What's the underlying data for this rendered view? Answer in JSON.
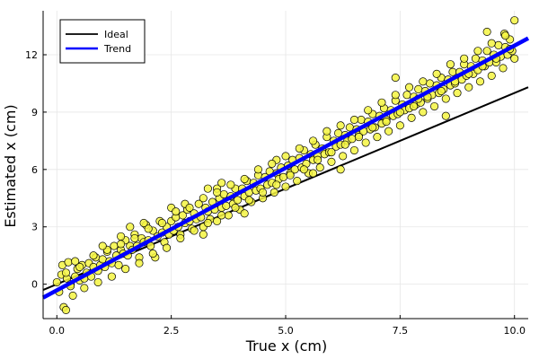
{
  "chart_data": {
    "type": "scatter",
    "title": "",
    "xlabel": "True x (cm)",
    "ylabel": "Estimated x (cm)",
    "xlim": [
      -0.3,
      10.3
    ],
    "ylim": [
      -1.8,
      14.3
    ],
    "xticks": [
      0.0,
      2.5,
      5.0,
      7.5,
      10.0
    ],
    "xtick_labels": [
      "0.0",
      "2.5",
      "5.0",
      "7.5",
      "10.0"
    ],
    "yticks": [
      0,
      3,
      6,
      9,
      12
    ],
    "ytick_labels": [
      "0",
      "3",
      "6",
      "9",
      "12"
    ],
    "grid": true,
    "legend_position": "top-left",
    "legend": [
      {
        "label": "Ideal",
        "color": "#000000"
      },
      {
        "label": "Trend",
        "color": "#0000ff"
      }
    ],
    "series": [
      {
        "name": "Ideal",
        "kind": "line",
        "color": "#000000",
        "slope": 1.0,
        "intercept": 0.0
      },
      {
        "name": "Trend",
        "kind": "line",
        "color": "#0000ff",
        "slope": 1.28,
        "intercept": -0.32
      },
      {
        "kind": "scatter",
        "color": "#f5f542",
        "edge_color": "#000000",
        "points": [
          [
            0.0,
            0.1
          ],
          [
            0.05,
            -0.4
          ],
          [
            0.1,
            0.5
          ],
          [
            0.12,
            1.0
          ],
          [
            0.15,
            -1.2
          ],
          [
            0.2,
            -1.35
          ],
          [
            0.22,
            0.3
          ],
          [
            0.25,
            1.15
          ],
          [
            0.3,
            0.0
          ],
          [
            0.35,
            -0.6
          ],
          [
            0.4,
            0.4
          ],
          [
            0.45,
            0.8
          ],
          [
            0.5,
            0.2
          ],
          [
            0.55,
            1.0
          ],
          [
            0.6,
            0.3
          ],
          [
            0.65,
            0.6
          ],
          [
            0.7,
            1.1
          ],
          [
            0.75,
            0.4
          ],
          [
            0.8,
            0.9
          ],
          [
            0.85,
            1.4
          ],
          [
            0.9,
            0.7
          ],
          [
            0.95,
            1.0
          ],
          [
            1.0,
            1.3
          ],
          [
            1.05,
            0.9
          ],
          [
            1.1,
            1.7
          ],
          [
            1.15,
            1.2
          ],
          [
            1.2,
            1.1
          ],
          [
            1.25,
            2.0
          ],
          [
            1.3,
            1.5
          ],
          [
            1.35,
            1.0
          ],
          [
            1.4,
            1.8
          ],
          [
            1.45,
            1.6
          ],
          [
            1.5,
            2.3
          ],
          [
            1.55,
            1.5
          ],
          [
            1.6,
            2.0
          ],
          [
            1.65,
            1.8
          ],
          [
            1.7,
            2.6
          ],
          [
            1.75,
            2.0
          ],
          [
            1.8,
            1.4
          ],
          [
            1.85,
            2.4
          ],
          [
            1.9,
            2.2
          ],
          [
            1.95,
            3.1
          ],
          [
            2.0,
            2.3
          ],
          [
            2.05,
            2.0
          ],
          [
            2.1,
            2.8
          ],
          [
            2.15,
            1.4
          ],
          [
            2.2,
            2.5
          ],
          [
            2.25,
            3.3
          ],
          [
            2.3,
            2.7
          ],
          [
            2.35,
            2.2
          ],
          [
            2.4,
            3.0
          ],
          [
            2.45,
            2.6
          ],
          [
            2.5,
            3.3
          ],
          [
            2.55,
            2.8
          ],
          [
            2.6,
            3.5
          ],
          [
            2.65,
            3.0
          ],
          [
            2.7,
            2.6
          ],
          [
            2.75,
            3.6
          ],
          [
            2.8,
            3.2
          ],
          [
            2.85,
            3.9
          ],
          [
            2.9,
            3.3
          ],
          [
            2.95,
            2.9
          ],
          [
            3.0,
            3.7
          ],
          [
            3.05,
            3.4
          ],
          [
            3.1,
            4.2
          ],
          [
            3.15,
            3.5
          ],
          [
            3.2,
            3.0
          ],
          [
            3.25,
            4.0
          ],
          [
            3.3,
            3.8
          ],
          [
            3.35,
            3.4
          ],
          [
            3.4,
            4.3
          ],
          [
            3.45,
            3.9
          ],
          [
            3.5,
            3.3
          ],
          [
            3.55,
            4.5
          ],
          [
            3.6,
            4.0
          ],
          [
            3.65,
            4.7
          ],
          [
            3.7,
            4.1
          ],
          [
            3.75,
            3.6
          ],
          [
            3.8,
            4.6
          ],
          [
            3.85,
            4.2
          ],
          [
            3.9,
            5.0
          ],
          [
            3.95,
            4.4
          ],
          [
            4.0,
            3.9
          ],
          [
            4.05,
            5.0
          ],
          [
            4.1,
            4.6
          ],
          [
            4.15,
            5.4
          ],
          [
            4.2,
            4.8
          ],
          [
            4.25,
            4.3
          ],
          [
            4.3,
            5.3
          ],
          [
            4.35,
            4.9
          ],
          [
            4.4,
            5.7
          ],
          [
            4.45,
            5.0
          ],
          [
            4.5,
            4.5
          ],
          [
            4.55,
            5.6
          ],
          [
            4.6,
            5.2
          ],
          [
            4.65,
            5.9
          ],
          [
            4.7,
            5.3
          ],
          [
            4.75,
            4.8
          ],
          [
            4.8,
            5.8
          ],
          [
            4.85,
            5.5
          ],
          [
            4.9,
            6.1
          ],
          [
            4.95,
            5.6
          ],
          [
            5.0,
            5.1
          ],
          [
            5.05,
            6.2
          ],
          [
            5.1,
            5.8
          ],
          [
            5.15,
            6.5
          ],
          [
            5.2,
            6.0
          ],
          [
            5.25,
            5.4
          ],
          [
            5.3,
            6.6
          ],
          [
            5.35,
            6.1
          ],
          [
            5.4,
            7.0
          ],
          [
            5.45,
            6.3
          ],
          [
            5.5,
            5.8
          ],
          [
            5.55,
            6.8
          ],
          [
            5.6,
            6.5
          ],
          [
            5.65,
            7.3
          ],
          [
            5.7,
            6.7
          ],
          [
            5.75,
            6.1
          ],
          [
            5.8,
            7.1
          ],
          [
            5.85,
            6.8
          ],
          [
            5.9,
            7.7
          ],
          [
            5.95,
            6.9
          ],
          [
            6.0,
            6.4
          ],
          [
            6.05,
            7.5
          ],
          [
            6.1,
            7.2
          ],
          [
            6.15,
            7.9
          ],
          [
            6.2,
            7.3
          ],
          [
            6.25,
            6.7
          ],
          [
            6.3,
            7.8
          ],
          [
            6.35,
            7.5
          ],
          [
            6.4,
            8.2
          ],
          [
            6.45,
            7.6
          ],
          [
            6.5,
            7.0
          ],
          [
            6.55,
            8.1
          ],
          [
            6.6,
            7.8
          ],
          [
            6.65,
            8.6
          ],
          [
            6.7,
            8.0
          ],
          [
            6.75,
            7.4
          ],
          [
            6.8,
            8.5
          ],
          [
            6.85,
            8.1
          ],
          [
            6.9,
            8.9
          ],
          [
            6.95,
            8.2
          ],
          [
            7.0,
            7.7
          ],
          [
            7.05,
            8.8
          ],
          [
            7.1,
            8.4
          ],
          [
            7.15,
            9.2
          ],
          [
            7.2,
            8.6
          ],
          [
            7.25,
            8.0
          ],
          [
            7.3,
            9.1
          ],
          [
            7.35,
            8.8
          ],
          [
            7.4,
            9.6
          ],
          [
            7.45,
            8.9
          ],
          [
            7.5,
            8.3
          ],
          [
            7.55,
            9.4
          ],
          [
            7.6,
            9.1
          ],
          [
            7.65,
            9.9
          ],
          [
            7.7,
            9.2
          ],
          [
            7.75,
            8.7
          ],
          [
            7.8,
            9.8
          ],
          [
            7.85,
            9.4
          ],
          [
            7.9,
            10.2
          ],
          [
            7.95,
            9.5
          ],
          [
            8.0,
            9.0
          ],
          [
            8.05,
            10.1
          ],
          [
            8.1,
            9.7
          ],
          [
            8.15,
            10.5
          ],
          [
            8.2,
            9.9
          ],
          [
            8.25,
            9.3
          ],
          [
            8.3,
            10.4
          ],
          [
            8.35,
            10.0
          ],
          [
            8.4,
            10.8
          ],
          [
            8.45,
            10.2
          ],
          [
            8.5,
            9.7
          ],
          [
            8.55,
            10.7
          ],
          [
            8.6,
            10.4
          ],
          [
            8.65,
            11.1
          ],
          [
            8.7,
            10.5
          ],
          [
            8.75,
            10.0
          ],
          [
            8.8,
            11.1
          ],
          [
            8.85,
            10.7
          ],
          [
            8.9,
            11.5
          ],
          [
            8.95,
            10.9
          ],
          [
            9.0,
            10.3
          ],
          [
            9.05,
            11.4
          ],
          [
            9.1,
            11.0
          ],
          [
            9.15,
            11.8
          ],
          [
            9.2,
            11.2
          ],
          [
            9.25,
            10.6
          ],
          [
            9.3,
            11.7
          ],
          [
            9.35,
            11.4
          ],
          [
            9.4,
            12.2
          ],
          [
            9.45,
            11.6
          ],
          [
            9.5,
            10.9
          ],
          [
            9.55,
            12.0
          ],
          [
            9.6,
            11.6
          ],
          [
            9.65,
            12.5
          ],
          [
            9.7,
            11.9
          ],
          [
            9.75,
            11.3
          ],
          [
            9.8,
            12.4
          ],
          [
            9.85,
            12.0
          ],
          [
            9.9,
            12.8
          ],
          [
            9.95,
            12.2
          ],
          [
            10.0,
            11.8
          ],
          [
            9.78,
            13.1
          ],
          [
            10.0,
            13.8
          ],
          [
            9.4,
            13.2
          ],
          [
            7.4,
            10.8
          ],
          [
            8.5,
            8.8
          ],
          [
            7.9,
            9.7
          ],
          [
            2.5,
            4.0
          ],
          [
            3.5,
            5.0
          ],
          [
            2.8,
            4.2
          ],
          [
            3.3,
            5.0
          ],
          [
            4.1,
            3.7
          ],
          [
            3.2,
            2.6
          ],
          [
            1.6,
            3.0
          ],
          [
            1.4,
            2.5
          ],
          [
            5.6,
            5.8
          ],
          [
            6.2,
            6.0
          ],
          [
            4.8,
            6.5
          ],
          [
            0.3,
            -0.1
          ],
          [
            0.6,
            -0.2
          ],
          [
            0.9,
            0.1
          ],
          [
            1.2,
            0.4
          ],
          [
            1.5,
            0.8
          ],
          [
            1.8,
            1.1
          ],
          [
            2.1,
            1.6
          ],
          [
            2.4,
            1.9
          ],
          [
            2.7,
            2.4
          ],
          [
            3.0,
            2.8
          ],
          [
            3.3,
            3.2
          ],
          [
            3.6,
            3.6
          ],
          [
            3.9,
            4.0
          ],
          [
            4.2,
            4.4
          ],
          [
            4.5,
            4.8
          ],
          [
            4.8,
            5.2
          ],
          [
            5.1,
            5.7
          ],
          [
            5.4,
            6.0
          ],
          [
            5.7,
            6.5
          ],
          [
            6.0,
            6.9
          ],
          [
            6.3,
            7.3
          ],
          [
            6.6,
            7.7
          ],
          [
            6.9,
            8.2
          ],
          [
            7.2,
            8.5
          ],
          [
            7.5,
            9.0
          ],
          [
            7.8,
            9.3
          ],
          [
            8.1,
            9.8
          ],
          [
            8.4,
            10.1
          ],
          [
            8.7,
            10.6
          ],
          [
            9.0,
            11.0
          ],
          [
            9.3,
            11.4
          ],
          [
            9.6,
            11.8
          ],
          [
            9.9,
            12.3
          ],
          [
            0.2,
            0.6
          ],
          [
            0.5,
            0.9
          ],
          [
            0.8,
            1.5
          ],
          [
            1.1,
            1.8
          ],
          [
            1.4,
            2.1
          ],
          [
            1.7,
            2.4
          ],
          [
            2.0,
            2.9
          ],
          [
            2.3,
            3.2
          ],
          [
            2.6,
            3.8
          ],
          [
            2.9,
            4.0
          ],
          [
            3.2,
            4.5
          ],
          [
            3.5,
            4.8
          ],
          [
            3.8,
            5.2
          ],
          [
            4.1,
            5.5
          ],
          [
            4.4,
            6.0
          ],
          [
            4.7,
            6.3
          ],
          [
            5.0,
            6.7
          ],
          [
            5.3,
            7.1
          ],
          [
            5.6,
            7.5
          ],
          [
            5.9,
            8.0
          ],
          [
            6.2,
            8.3
          ],
          [
            6.5,
            8.6
          ],
          [
            6.8,
            9.1
          ],
          [
            7.1,
            9.5
          ],
          [
            7.4,
            9.9
          ],
          [
            7.7,
            10.3
          ],
          [
            8.0,
            10.6
          ],
          [
            8.3,
            11.0
          ],
          [
            8.6,
            11.5
          ],
          [
            8.9,
            11.8
          ],
          [
            9.2,
            12.2
          ],
          [
            9.5,
            12.6
          ],
          [
            9.8,
            13.0
          ],
          [
            0.4,
            1.2
          ],
          [
            1.0,
            2.0
          ],
          [
            1.9,
            3.2
          ],
          [
            3.6,
            5.3
          ]
        ]
      }
    ]
  }
}
